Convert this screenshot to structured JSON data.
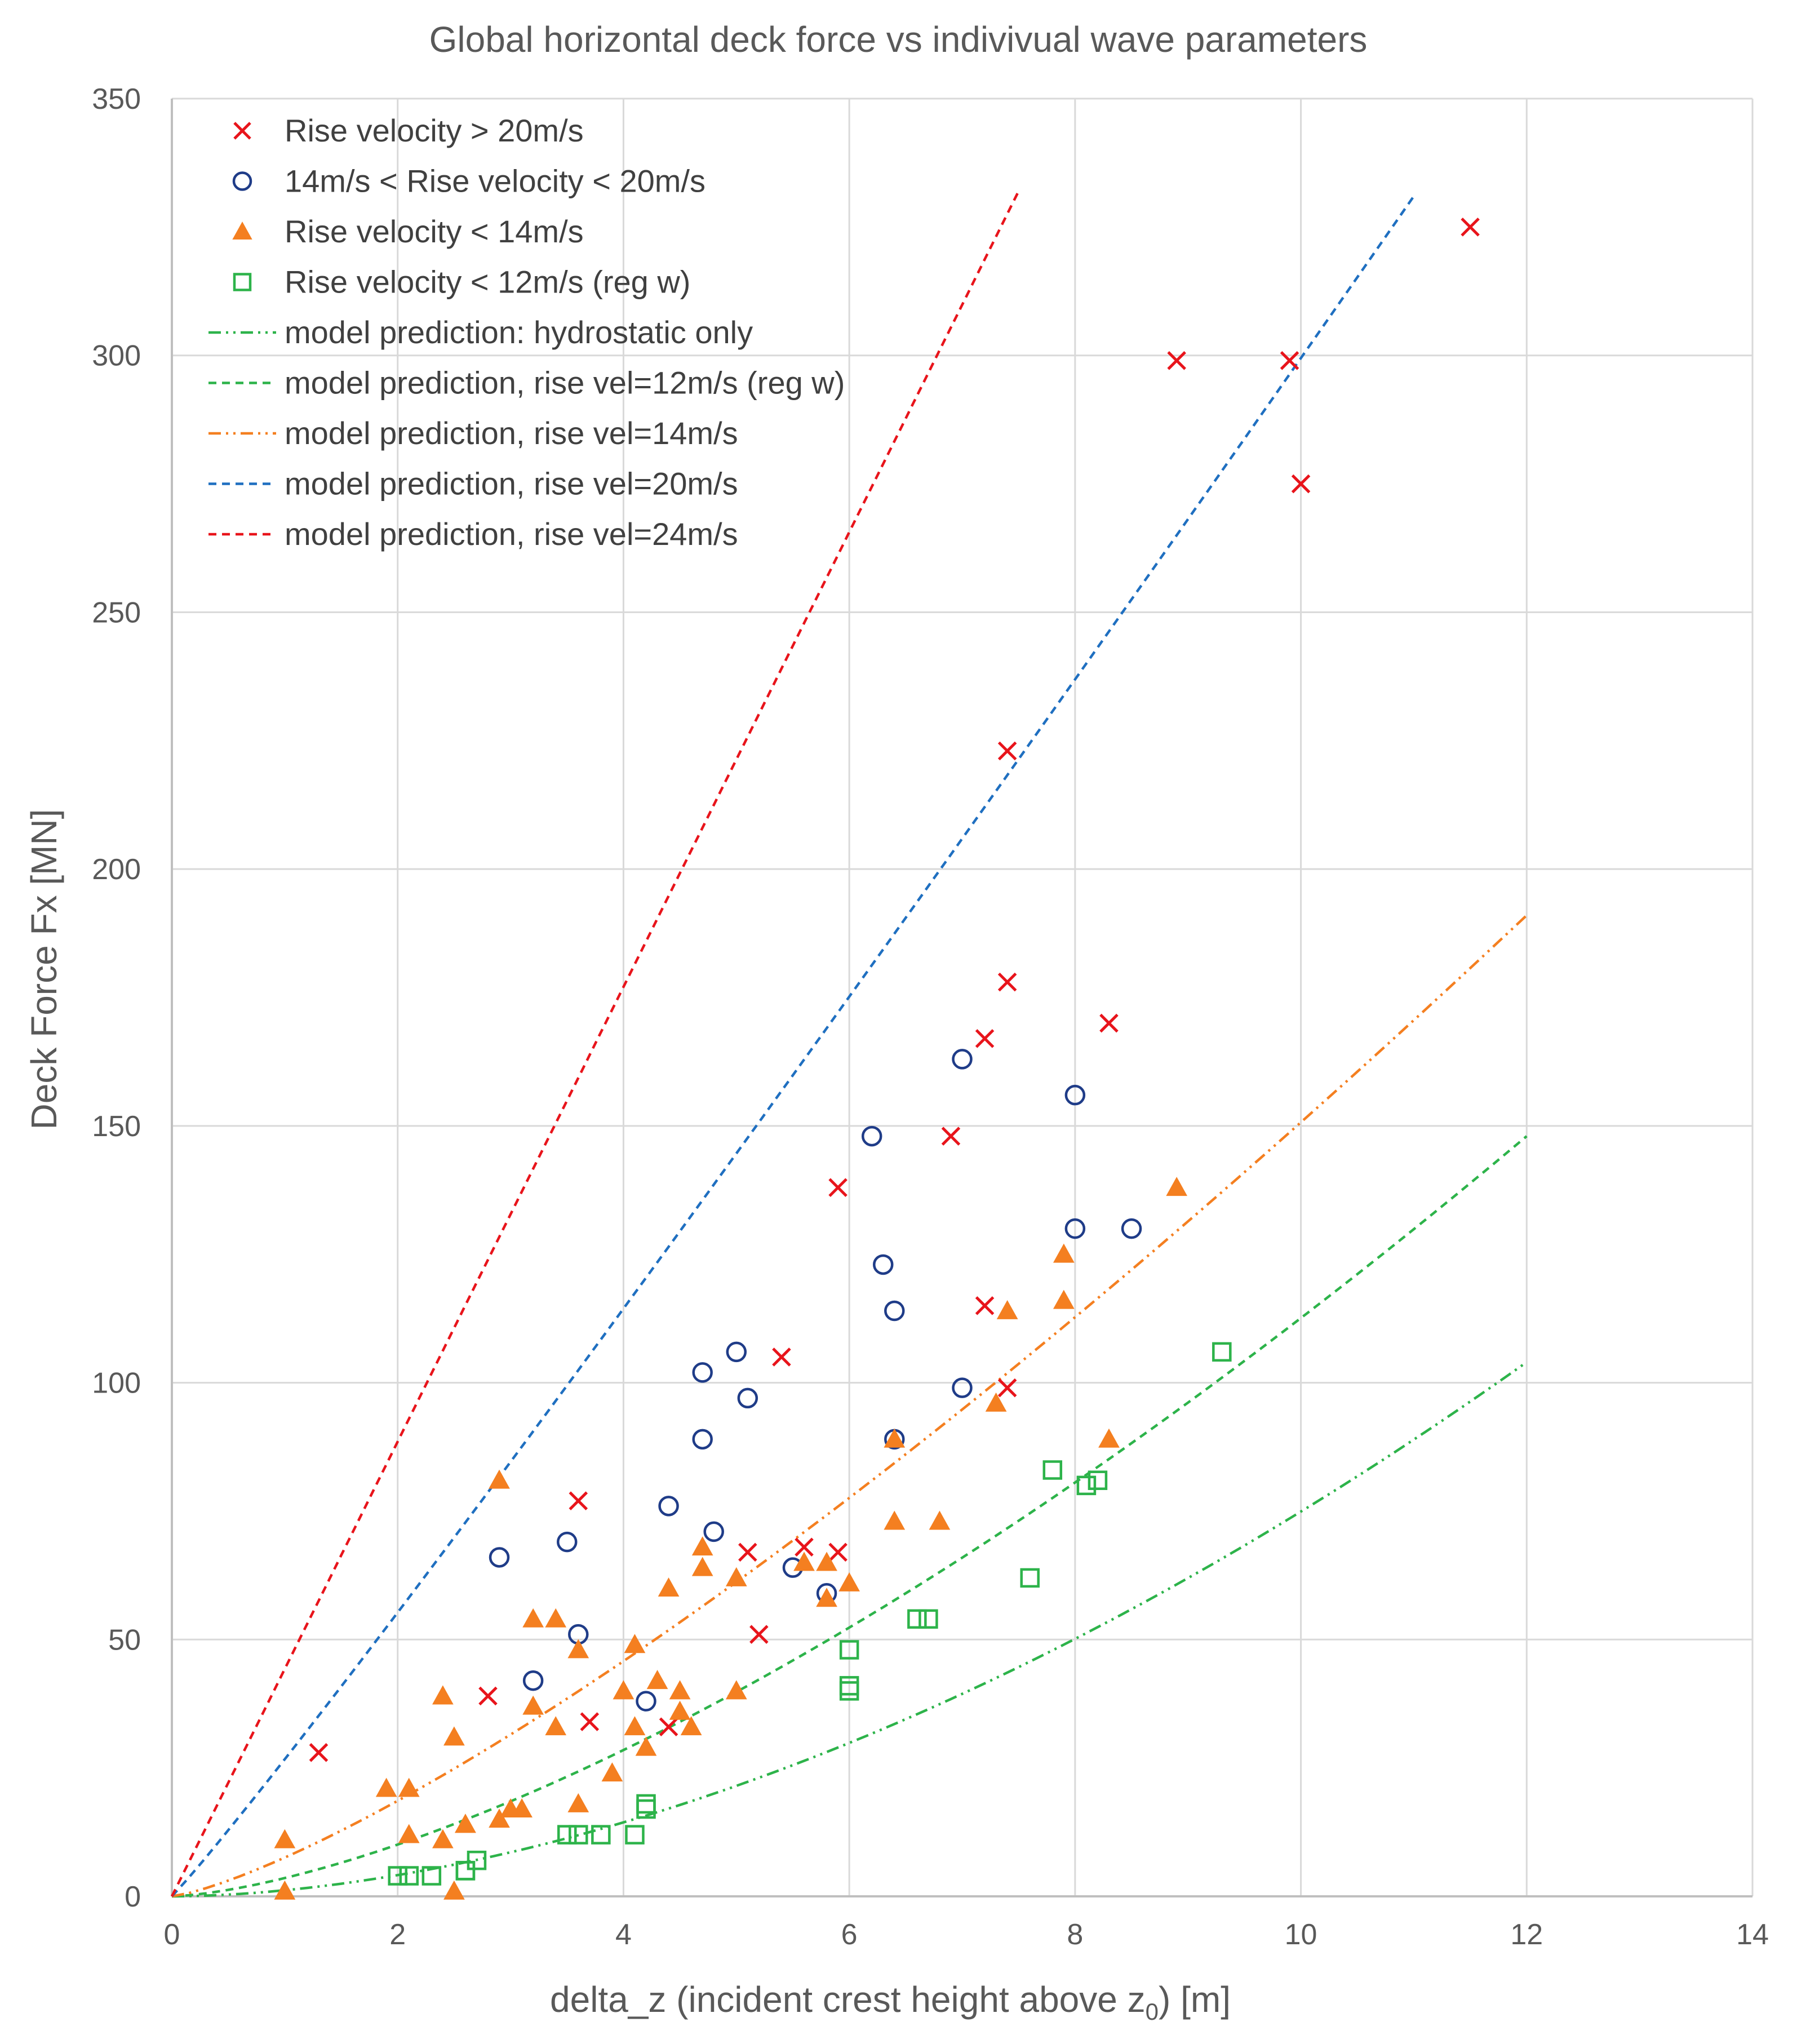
{
  "chart_data": {
    "type": "scatter",
    "title": "Global horizontal deck force vs indivivual wave parameters",
    "xlabel": "delta_z (incident crest height above z",
    "xlabel_subscript": "0",
    "xlabel_suffix": ") [m]",
    "ylabel": "Deck Force Fx  [MN]",
    "xlim": [
      0,
      14
    ],
    "ylim": [
      0,
      350
    ],
    "xticks": [
      0,
      2,
      4,
      6,
      8,
      10,
      12,
      14
    ],
    "yticks": [
      0,
      50,
      100,
      150,
      200,
      250,
      300,
      350
    ],
    "grid": true,
    "legend_position": "top-left",
    "series": [
      {
        "name": "Rise velocity > 20m/s",
        "marker": "x",
        "color": "#e8141b",
        "points": [
          [
            1.3,
            28
          ],
          [
            2.8,
            39
          ],
          [
            3.6,
            77
          ],
          [
            3.7,
            34
          ],
          [
            4.4,
            33
          ],
          [
            5.1,
            67
          ],
          [
            5.2,
            51
          ],
          [
            5.4,
            105
          ],
          [
            5.6,
            68
          ],
          [
            5.9,
            67
          ],
          [
            5.9,
            138
          ],
          [
            6.9,
            148
          ],
          [
            7.2,
            167
          ],
          [
            7.2,
            115
          ],
          [
            7.4,
            99
          ],
          [
            7.4,
            178
          ],
          [
            7.4,
            223
          ],
          [
            8.3,
            170
          ],
          [
            8.9,
            299
          ],
          [
            9.9,
            299
          ],
          [
            10.0,
            275
          ],
          [
            11.5,
            325
          ]
        ]
      },
      {
        "name": "14m/s < Rise velocity < 20m/s",
        "marker": "circle",
        "color": "#1f3c88",
        "points": [
          [
            2.9,
            66
          ],
          [
            3.2,
            42
          ],
          [
            3.5,
            69
          ],
          [
            3.6,
            51
          ],
          [
            4.2,
            38
          ],
          [
            4.4,
            76
          ],
          [
            4.7,
            102
          ],
          [
            4.7,
            89
          ],
          [
            4.8,
            71
          ],
          [
            5.0,
            106
          ],
          [
            5.1,
            97
          ],
          [
            5.5,
            64
          ],
          [
            5.8,
            59
          ],
          [
            6.2,
            148
          ],
          [
            6.3,
            123
          ],
          [
            6.4,
            114
          ],
          [
            6.4,
            89
          ],
          [
            7.0,
            163
          ],
          [
            7.0,
            99
          ],
          [
            8.0,
            156
          ],
          [
            8.0,
            130
          ],
          [
            8.5,
            130
          ]
        ]
      },
      {
        "name": "Rise velocity < 14m/s",
        "marker": "triangle",
        "color": "#f47f20",
        "points": [
          [
            1.0,
            11
          ],
          [
            1.0,
            1
          ],
          [
            1.9,
            21
          ],
          [
            2.1,
            21
          ],
          [
            2.1,
            12
          ],
          [
            2.4,
            11
          ],
          [
            2.4,
            39
          ],
          [
            2.5,
            31
          ],
          [
            2.5,
            1
          ],
          [
            2.6,
            14
          ],
          [
            2.6,
            14
          ],
          [
            2.9,
            81
          ],
          [
            2.9,
            15
          ],
          [
            3.0,
            17
          ],
          [
            3.1,
            17
          ],
          [
            3.2,
            54
          ],
          [
            3.2,
            37
          ],
          [
            3.4,
            54
          ],
          [
            3.4,
            33
          ],
          [
            3.6,
            48
          ],
          [
            3.6,
            18
          ],
          [
            3.9,
            24
          ],
          [
            4.0,
            40
          ],
          [
            4.1,
            49
          ],
          [
            4.1,
            33
          ],
          [
            4.2,
            29
          ],
          [
            4.3,
            42
          ],
          [
            4.4,
            60
          ],
          [
            4.5,
            40
          ],
          [
            4.5,
            36
          ],
          [
            4.6,
            33
          ],
          [
            4.7,
            68
          ],
          [
            4.7,
            64
          ],
          [
            5.0,
            62
          ],
          [
            5.0,
            40
          ],
          [
            5.6,
            65
          ],
          [
            5.8,
            58
          ],
          [
            5.8,
            65
          ],
          [
            6.0,
            61
          ],
          [
            6.4,
            89
          ],
          [
            6.4,
            73
          ],
          [
            6.8,
            73
          ],
          [
            7.3,
            96
          ],
          [
            7.4,
            114
          ],
          [
            7.9,
            125
          ],
          [
            7.9,
            116
          ],
          [
            8.3,
            89
          ],
          [
            8.9,
            138
          ]
        ]
      },
      {
        "name": "Rise velocity < 12m/s (reg w)",
        "marker": "square",
        "color": "#2db34a",
        "points": [
          [
            2.0,
            4
          ],
          [
            2.1,
            4
          ],
          [
            2.3,
            4
          ],
          [
            2.6,
            5
          ],
          [
            2.6,
            5
          ],
          [
            2.7,
            7
          ],
          [
            3.5,
            12
          ],
          [
            3.6,
            12
          ],
          [
            3.8,
            12
          ],
          [
            4.1,
            12
          ],
          [
            4.2,
            18
          ],
          [
            4.2,
            17
          ],
          [
            6.0,
            48
          ],
          [
            6.0,
            41
          ],
          [
            6.0,
            40
          ],
          [
            6.6,
            54
          ],
          [
            6.7,
            54
          ],
          [
            7.6,
            62
          ],
          [
            7.8,
            83
          ],
          [
            8.1,
            80
          ],
          [
            8.2,
            81
          ],
          [
            9.3,
            106
          ]
        ]
      }
    ],
    "model_predictions": [
      {
        "name": "model prediction: hydrostatic only",
        "color": "#2db34a",
        "dash": "dash-dot-dot",
        "x_end": 12,
        "y_end": 104,
        "exponent": 1.8
      },
      {
        "name": "model prediction, rise vel=12m/s (reg w)",
        "color": "#2db34a",
        "dash": "dashed",
        "x_end": 12,
        "y_end": 148,
        "exponent": 1.5
      },
      {
        "name": "model prediction, rise vel=14m/s",
        "color": "#f47f20",
        "dash": "dash-dot-dot",
        "x_end": 12,
        "y_end": 191,
        "exponent": 1.3
      },
      {
        "name": "model prediction, rise vel=20m/s",
        "color": "#1f6fc0",
        "dash": "dashed",
        "x_end": 11,
        "y_end": 331,
        "exponent": 1.05
      },
      {
        "name": "model prediction, rise vel=24m/s",
        "color": "#e8141b",
        "dash": "dashed",
        "x_end": 7.5,
        "y_end": 332,
        "exponent": 1.0
      }
    ]
  }
}
